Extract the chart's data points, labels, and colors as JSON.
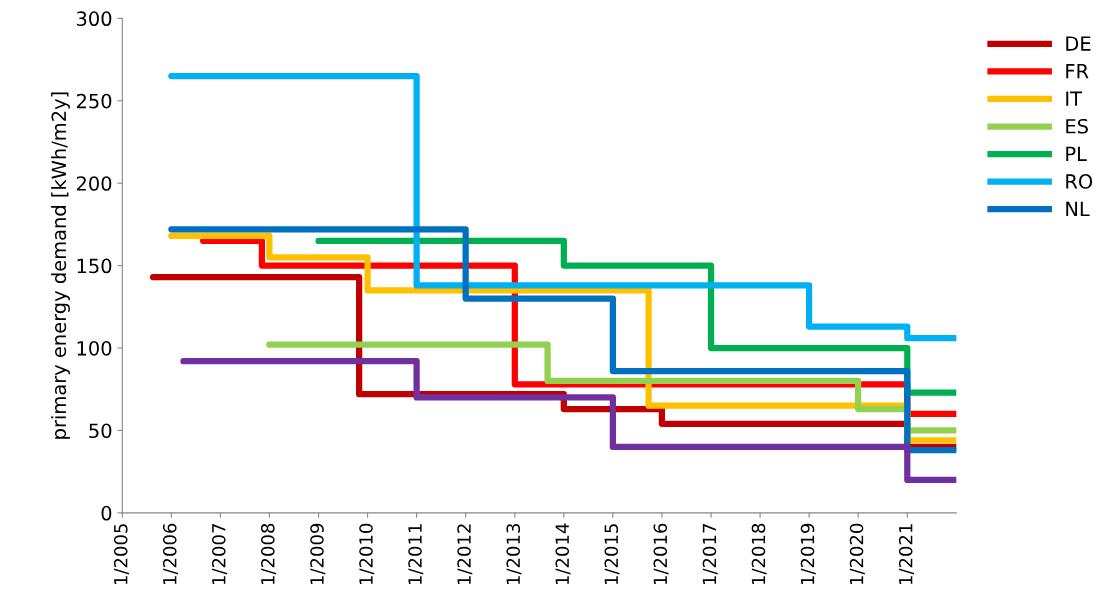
{
  "chart_data": {
    "type": "step",
    "ylabel": "primary energy demand [kWh/m2y]",
    "xlim": [
      "2005-01-01",
      "2022-01-01"
    ],
    "ylim": [
      0,
      300
    ],
    "xticks": [
      {
        "value": "2005-01-01",
        "label": "1/2005"
      },
      {
        "value": "2006-01-01",
        "label": "1/2006"
      },
      {
        "value": "2007-01-01",
        "label": "1/2007"
      },
      {
        "value": "2008-01-01",
        "label": "1/2008"
      },
      {
        "value": "2009-01-01",
        "label": "1/2009"
      },
      {
        "value": "2010-01-01",
        "label": "1/2010"
      },
      {
        "value": "2011-01-01",
        "label": "1/2011"
      },
      {
        "value": "2012-01-01",
        "label": "1/2012"
      },
      {
        "value": "2013-01-01",
        "label": "1/2013"
      },
      {
        "value": "2014-01-01",
        "label": "1/2014"
      },
      {
        "value": "2015-01-01",
        "label": "1/2015"
      },
      {
        "value": "2016-01-01",
        "label": "1/2016"
      },
      {
        "value": "2017-01-01",
        "label": "1/2017"
      },
      {
        "value": "2018-01-01",
        "label": "1/2018"
      },
      {
        "value": "2019-01-01",
        "label": "1/2019"
      },
      {
        "value": "2020-01-01",
        "label": "1/2020"
      },
      {
        "value": "2021-01-01",
        "label": "1/2021"
      }
    ],
    "yticks": [
      0,
      50,
      100,
      150,
      200,
      250,
      300
    ],
    "grid": false,
    "legend": "top right",
    "marker": "none",
    "line_style": "solid",
    "series": [
      {
        "name": "DE",
        "color": "#c00000",
        "x": [
          "2005-08-18",
          "2009-10-30",
          "2014-01-01",
          "2016-01-01",
          "2021-01-01",
          "2022-01-01"
        ],
        "values": [
          143,
          72,
          63,
          54,
          40,
          40
        ]
      },
      {
        "name": "FR",
        "color": "#ff0000",
        "x": [
          "2006-08-26",
          "2007-11-06",
          "2013-01-01",
          "2021-01-01",
          "2022-01-01"
        ],
        "values": [
          165,
          150,
          78,
          60,
          60
        ]
      },
      {
        "name": "IT",
        "color": "#ffc000",
        "x": [
          "2006-01-01",
          "2008-01-01",
          "2010-01-01",
          "2015-09-24",
          "2021-01-01",
          "2022-01-01"
        ],
        "values": [
          168,
          155,
          135,
          65,
          44,
          44
        ]
      },
      {
        "name": "ES",
        "color": "#92d050",
        "x": [
          "2008-01-01",
          "2013-09-02",
          "2020-01-01",
          "2021-01-01",
          "2022-01-01"
        ],
        "values": [
          102,
          80,
          63,
          50,
          50
        ]
      },
      {
        "name": "PL",
        "color": "#00b050",
        "x": [
          "2009-01-01",
          "2014-01-01",
          "2017-01-01",
          "2021-01-01",
          "2022-01-01"
        ],
        "values": [
          165,
          150,
          100,
          73,
          73
        ]
      },
      {
        "name": "RO",
        "color": "#00b0f0",
        "x": [
          "2006-01-01",
          "2011-01-01",
          "2019-01-01",
          "2021-01-01",
          "2022-01-01"
        ],
        "values": [
          265,
          138,
          113,
          106,
          106
        ]
      },
      {
        "name": "NL",
        "color": "#0070c0",
        "x": [
          "2006-01-01",
          "2012-01-01",
          "2015-01-01",
          "2021-01-01",
          "2022-01-01"
        ],
        "values": [
          172,
          130,
          86,
          38,
          38
        ]
      },
      {
        "color": "#7030a0",
        "x": [
          "2006-04-01",
          "2011-01-01",
          "2015-01-01",
          "2021-01-01",
          "2022-01-01"
        ],
        "values": [
          92,
          70,
          40,
          20,
          20
        ]
      }
    ]
  }
}
